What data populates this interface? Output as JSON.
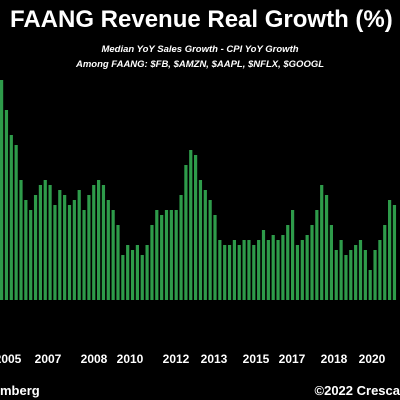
{
  "chart_data": {
    "type": "bar",
    "title": "FAANG Revenue Real Growth (%)",
    "subtitle_lines": [
      "Median YoY Sales Growth - CPI YoY Growth",
      "Among FAANG: $FB, $AMZN, $AAPL, $NFLX, $GOOGL"
    ],
    "x_tick_labels": [
      "2005",
      "2007",
      "2008",
      "2010",
      "2012",
      "2013",
      "2015",
      "2017",
      "2018",
      "2020"
    ],
    "values": [
      44,
      38,
      33,
      31,
      24,
      20,
      18,
      21,
      23,
      24,
      23,
      19,
      22,
      21,
      19,
      20,
      22,
      18,
      21,
      23,
      24,
      23,
      20,
      18,
      15,
      9,
      11,
      10,
      11,
      9,
      11,
      15,
      18,
      17,
      18,
      18,
      18,
      21,
      27,
      30,
      29,
      24,
      22,
      20,
      17,
      12,
      11,
      11,
      12,
      11,
      12,
      12,
      11,
      12,
      14,
      12,
      13,
      12,
      13,
      15,
      18,
      11,
      12,
      13,
      15,
      18,
      23,
      21,
      15,
      10,
      12,
      9,
      10,
      11,
      12,
      10,
      6,
      10,
      12,
      15,
      20,
      19
    ],
    "bar_color": "#2e9b4a",
    "background": "#000000"
  },
  "footer": {
    "source": "mberg",
    "copyright": "©2022 Cresca"
  }
}
